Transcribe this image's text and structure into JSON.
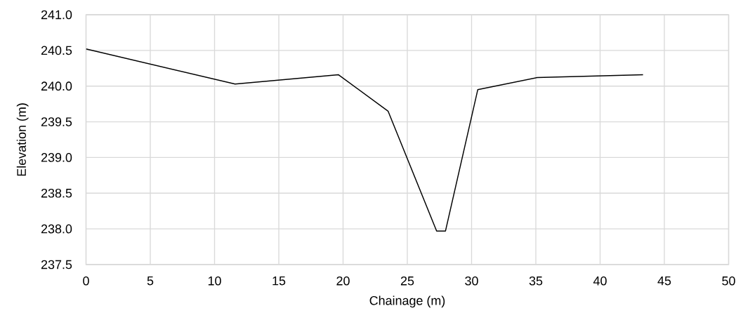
{
  "chart_data": {
    "type": "line",
    "xlabel": "Chainage (m)",
    "ylabel": "Elevation (m)",
    "x": [
      0,
      11.6,
      19.63,
      23.5,
      27.28,
      27.97,
      30.48,
      35.11,
      43.34
    ],
    "series": [
      {
        "color": "#000000",
        "values": [
          240.52,
          240.03,
          240.16,
          239.65,
          237.97,
          237.97,
          239.95,
          240.12,
          240.16
        ]
      }
    ],
    "xlim": [
      0,
      50
    ],
    "xticks": [
      0,
      5,
      10,
      15,
      20,
      25,
      30,
      35,
      40,
      45,
      50
    ],
    "ylim": [
      237.5,
      241.0
    ],
    "yticks": [
      {
        "value": 237.5,
        "label": "237.5"
      },
      {
        "value": 238.0,
        "label": "238.0"
      },
      {
        "value": 238.5,
        "label": "238.5"
      },
      {
        "value": 239.0,
        "label": "239.0"
      },
      {
        "value": 239.5,
        "label": "239.5"
      },
      {
        "value": 240.0,
        "label": "240.0"
      },
      {
        "value": 240.5,
        "label": "240.5"
      },
      {
        "value": 241.0,
        "label": "241.0"
      }
    ],
    "grid": true,
    "legend": false,
    "marker": "none",
    "line_style": "solid"
  }
}
